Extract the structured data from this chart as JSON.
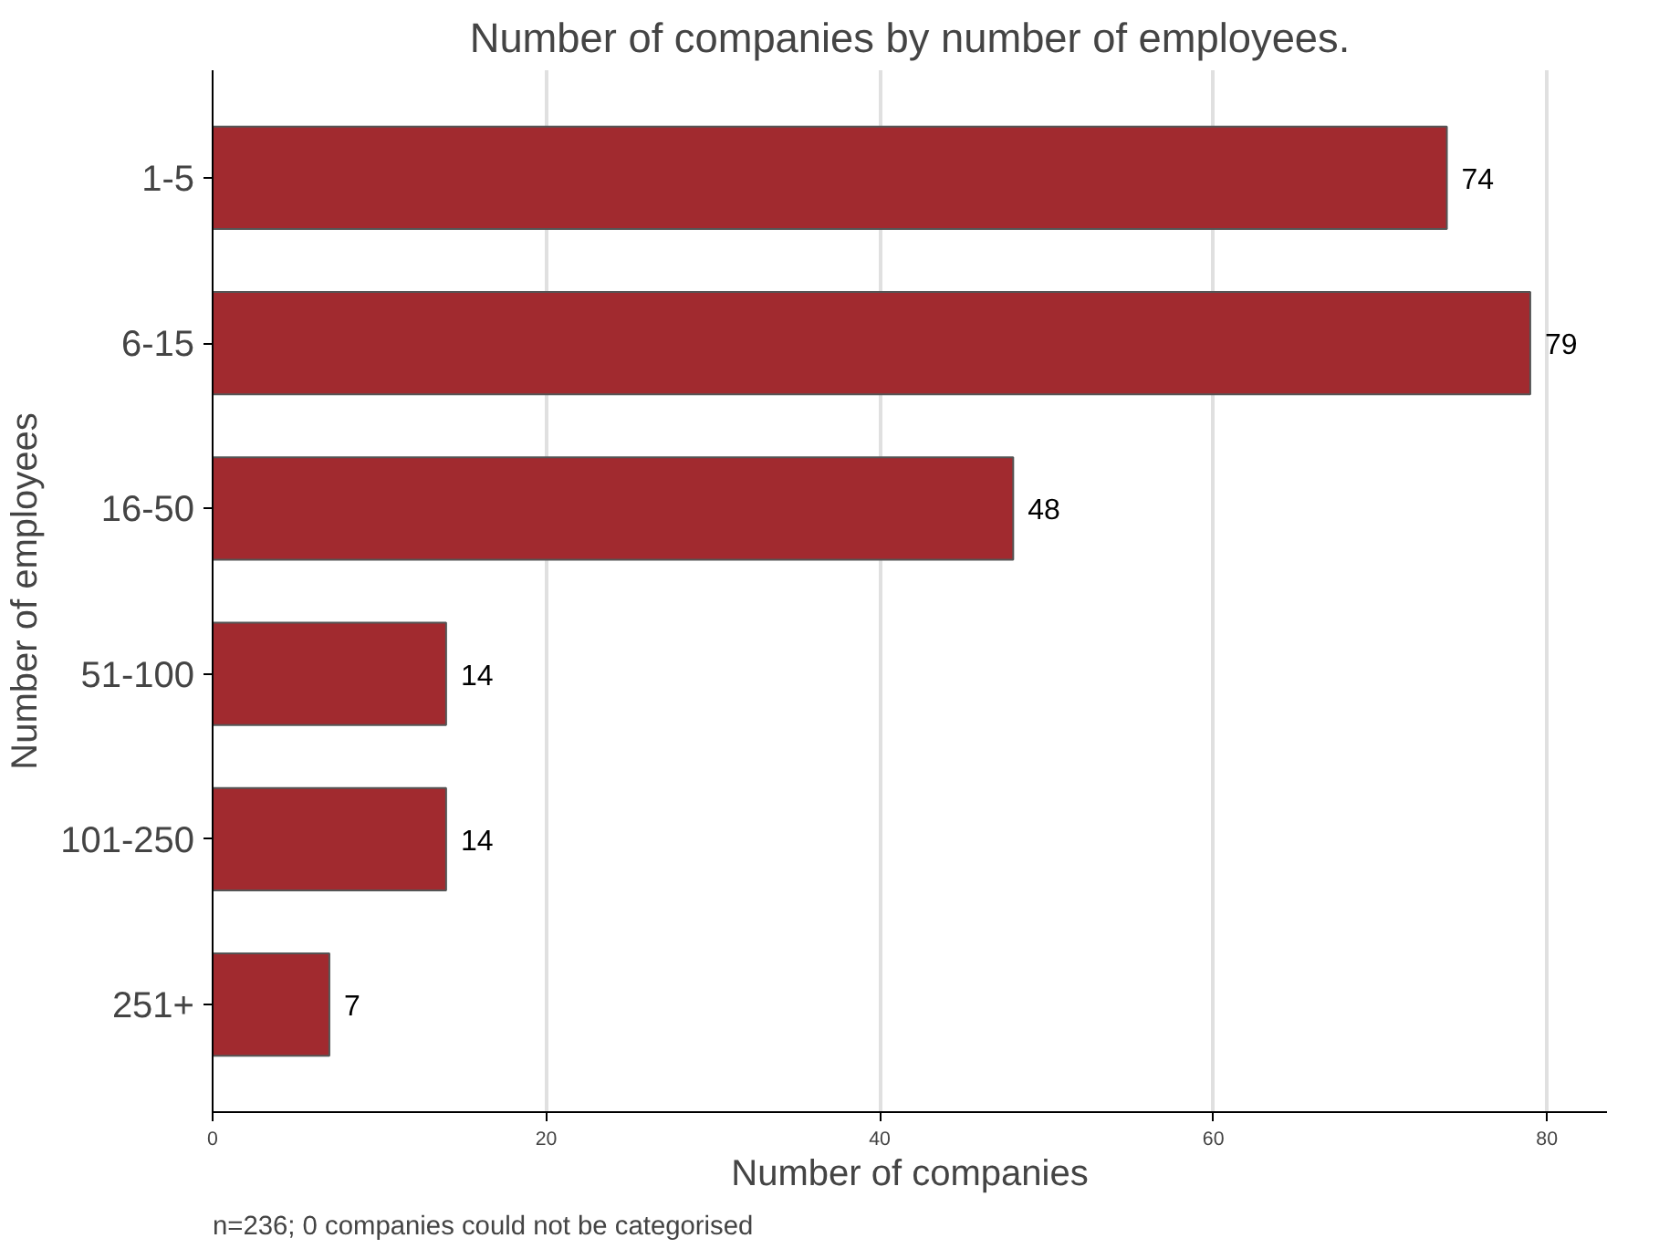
{
  "chart_data": {
    "type": "bar",
    "orientation": "horizontal",
    "title": "Number of companies by number of employees.",
    "xlabel": "Number of companies",
    "ylabel": "Number of employees",
    "categories": [
      "1-5",
      "6-15",
      "16-50",
      "51-100",
      "101-250",
      "251+"
    ],
    "values": [
      74,
      79,
      48,
      14,
      14,
      7
    ],
    "color": "#a12a2f",
    "xlim": [
      0,
      83.6
    ],
    "xticks": [
      0,
      20,
      40,
      60,
      80
    ],
    "grid": "x",
    "data_labels": true,
    "annotations": [
      "n=236; 0 companies could not be categorised"
    ]
  }
}
